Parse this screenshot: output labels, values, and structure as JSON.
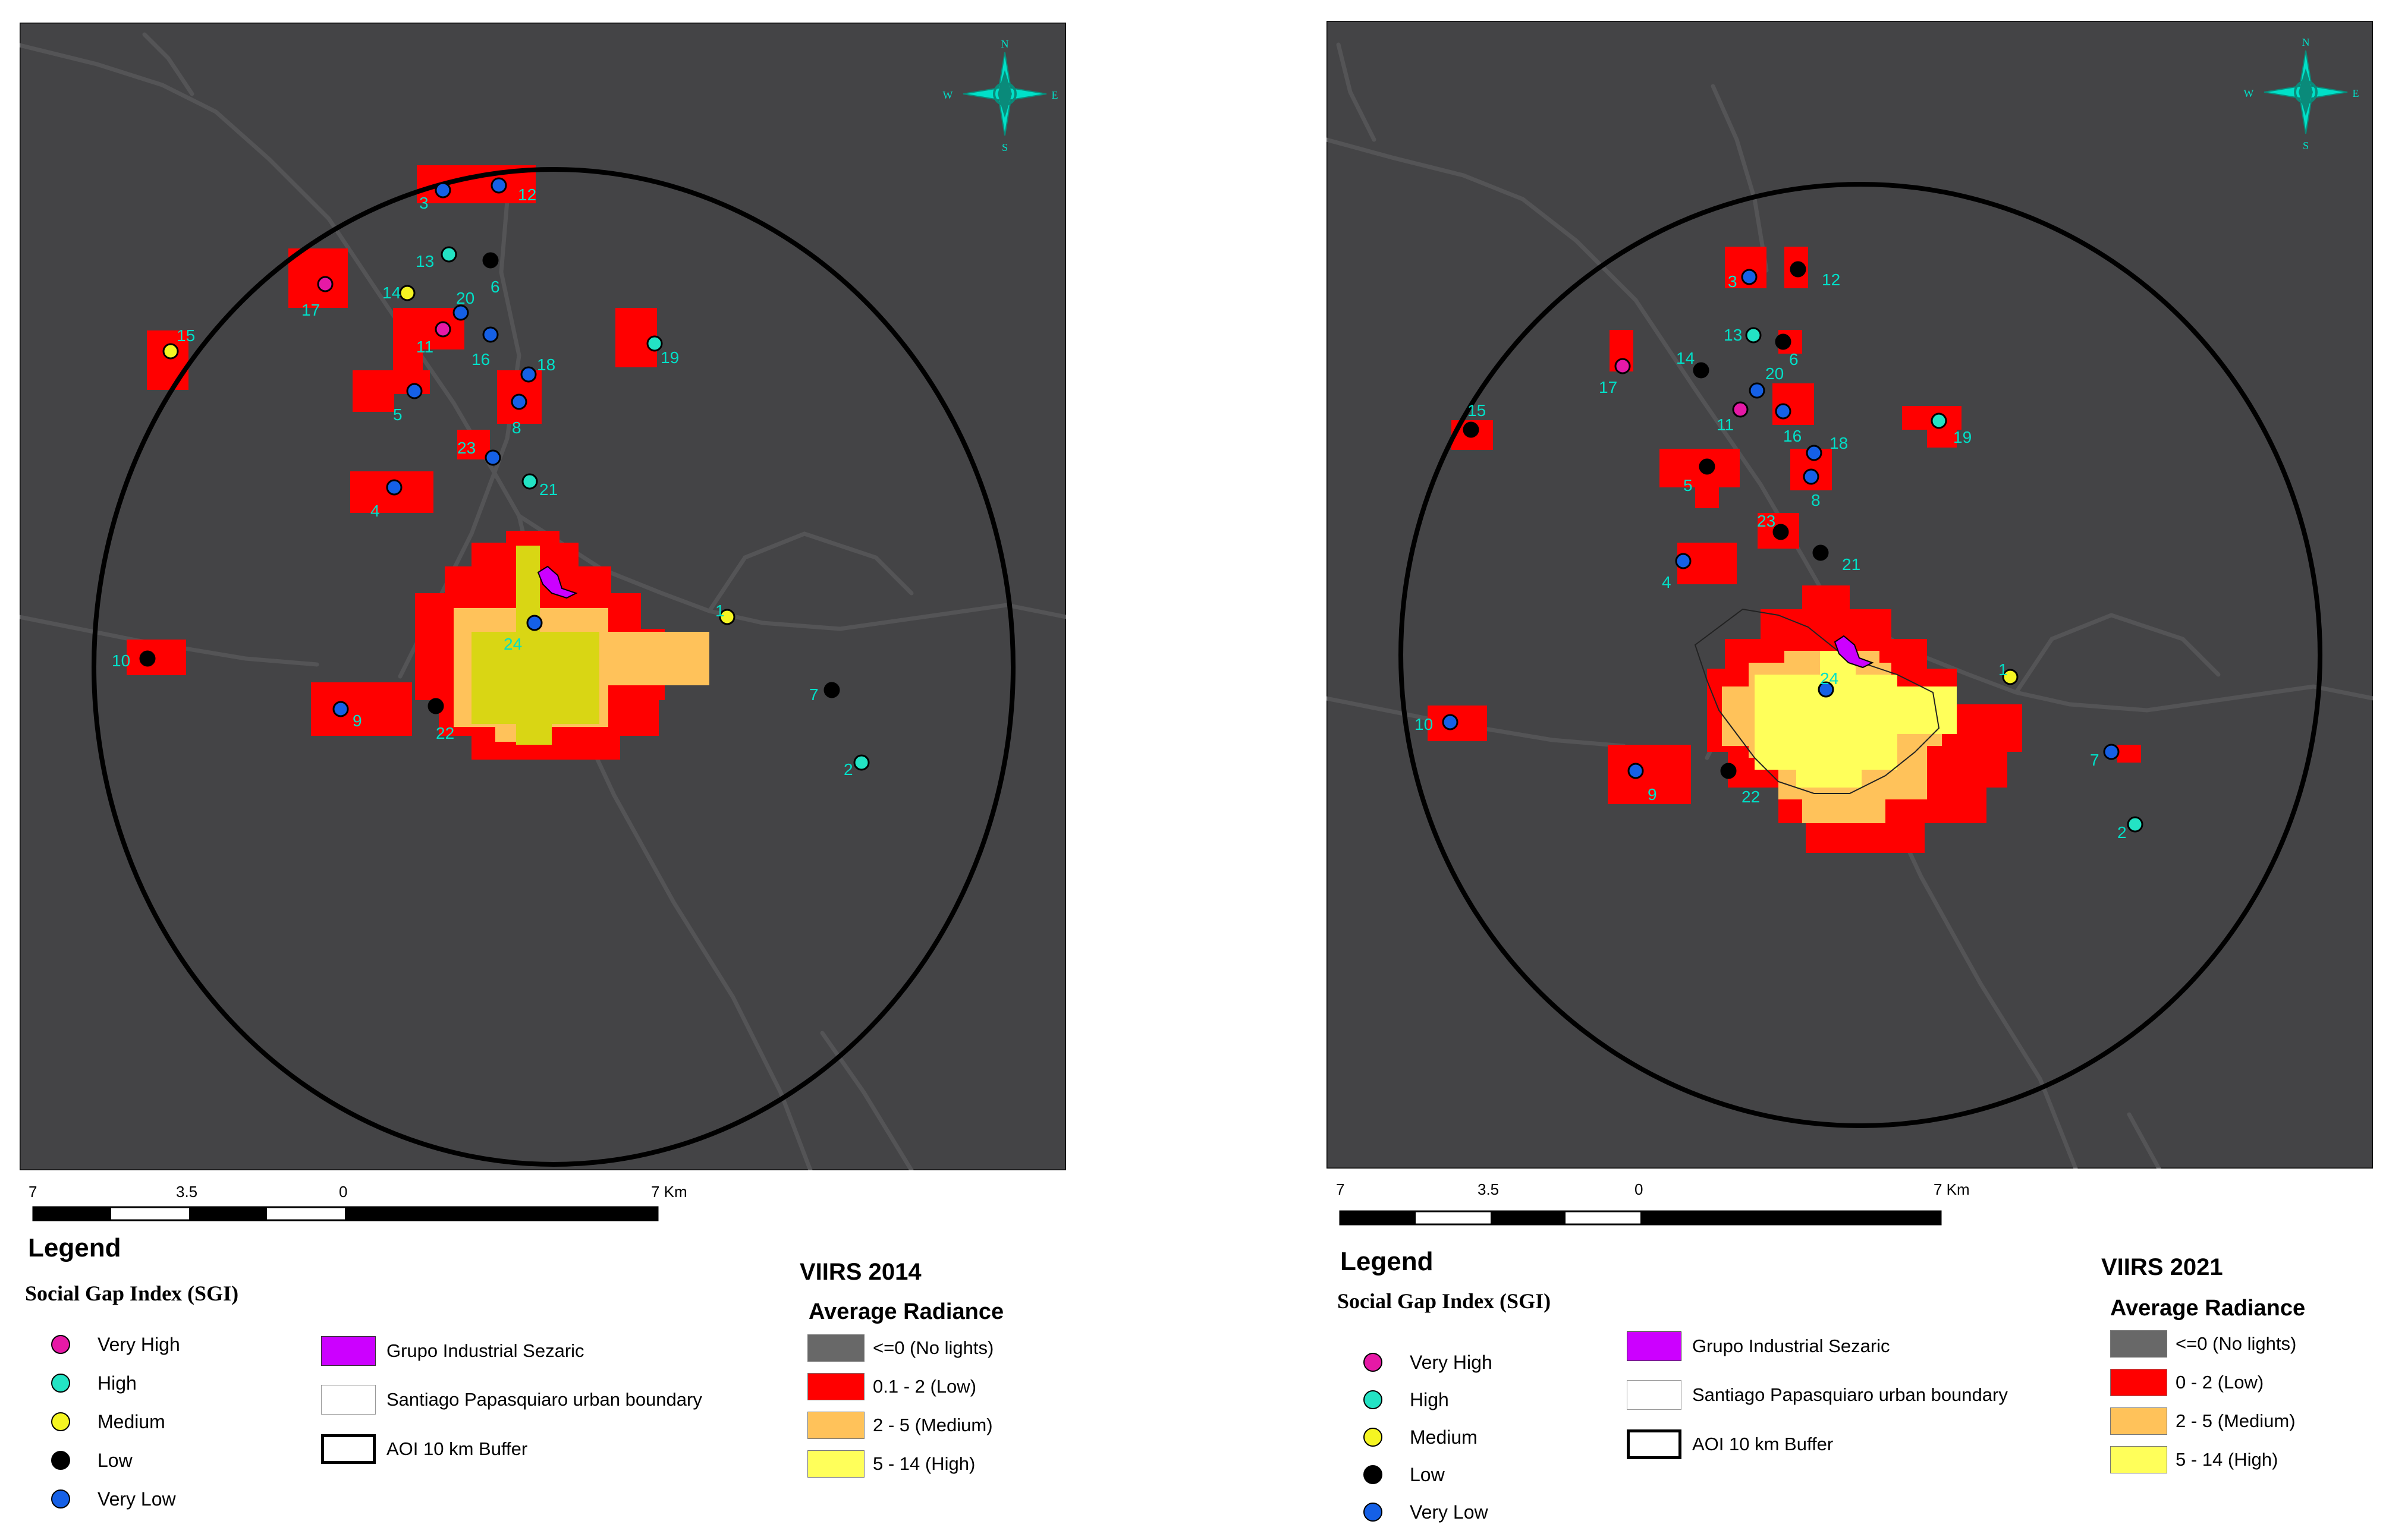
{
  "colors": {
    "map_background": "#444446",
    "road": "#525254",
    "buffer_outline": "#000000",
    "label": "#00e0c8",
    "compass": "#00e0c8"
  },
  "panels": [
    {
      "id": "left",
      "viirs_title": "VIIRS 2014",
      "radiance_title": "Average Radiance",
      "radiance_classes": [
        {
          "label": "<=0 (No lights)",
          "color": "#686868"
        },
        {
          "label": "0.1 - 2 (Low)",
          "color": "#ff0000"
        },
        {
          "label": "2 - 5 (Medium)",
          "color": "#ffc25a"
        },
        {
          "label": "5 - 14 (High)",
          "color": "#ffff5a"
        }
      ],
      "scale": {
        "ticks": [
          "7",
          "3.5",
          "0",
          "7 Km"
        ]
      },
      "points": [
        {
          "id": "1",
          "sgi": "Medium"
        },
        {
          "id": "2",
          "sgi": "High"
        },
        {
          "id": "3",
          "sgi": "Very Low"
        },
        {
          "id": "4",
          "sgi": "Very Low"
        },
        {
          "id": "5",
          "sgi": "Very Low"
        },
        {
          "id": "6",
          "sgi": "Low"
        },
        {
          "id": "7",
          "sgi": "Low"
        },
        {
          "id": "8",
          "sgi": "Very Low"
        },
        {
          "id": "9",
          "sgi": "Very Low"
        },
        {
          "id": "10",
          "sgi": "Low"
        },
        {
          "id": "11",
          "sgi": "Very High"
        },
        {
          "id": "12",
          "sgi": "Very Low"
        },
        {
          "id": "13",
          "sgi": "High"
        },
        {
          "id": "14",
          "sgi": "Medium"
        },
        {
          "id": "15",
          "sgi": "Medium"
        },
        {
          "id": "16",
          "sgi": "Very Low"
        },
        {
          "id": "17",
          "sgi": "Very High"
        },
        {
          "id": "18",
          "sgi": "Very Low"
        },
        {
          "id": "19",
          "sgi": "High"
        },
        {
          "id": "20",
          "sgi": "Very Low"
        },
        {
          "id": "21",
          "sgi": "High"
        },
        {
          "id": "22",
          "sgi": "Low"
        },
        {
          "id": "23",
          "sgi": "Very Low"
        },
        {
          "id": "24",
          "sgi": "Very Low"
        }
      ]
    },
    {
      "id": "right",
      "viirs_title": "VIIRS 2021",
      "radiance_title": "Average Radiance",
      "radiance_classes": [
        {
          "label": "<=0 (No lights)",
          "color": "#686868"
        },
        {
          "label": "0 - 2 (Low)",
          "color": "#ff0000"
        },
        {
          "label": "2 - 5 (Medium)",
          "color": "#ffc25a"
        },
        {
          "label": "5 - 14 (High)",
          "color": "#ffff5a"
        }
      ],
      "scale": {
        "ticks": [
          "7",
          "3.5",
          "0",
          "7 Km"
        ]
      },
      "points": [
        {
          "id": "1",
          "sgi": "Medium"
        },
        {
          "id": "2",
          "sgi": "High"
        },
        {
          "id": "3",
          "sgi": "Very Low"
        },
        {
          "id": "4",
          "sgi": "Very Low"
        },
        {
          "id": "5",
          "sgi": "Low"
        },
        {
          "id": "6",
          "sgi": "Low"
        },
        {
          "id": "7",
          "sgi": "Very Low"
        },
        {
          "id": "8",
          "sgi": "Very Low"
        },
        {
          "id": "9",
          "sgi": "Very Low"
        },
        {
          "id": "10",
          "sgi": "Very Low"
        },
        {
          "id": "11",
          "sgi": "Very High"
        },
        {
          "id": "12",
          "sgi": "Low"
        },
        {
          "id": "13",
          "sgi": "High"
        },
        {
          "id": "14",
          "sgi": "Low"
        },
        {
          "id": "15",
          "sgi": "Low"
        },
        {
          "id": "16",
          "sgi": "Very Low"
        },
        {
          "id": "17",
          "sgi": "Very High"
        },
        {
          "id": "18",
          "sgi": "Very Low"
        },
        {
          "id": "19",
          "sgi": "High"
        },
        {
          "id": "20",
          "sgi": "Very Low"
        },
        {
          "id": "21",
          "sgi": "Low"
        },
        {
          "id": "22",
          "sgi": "Low"
        },
        {
          "id": "23",
          "sgi": "Low"
        },
        {
          "id": "24",
          "sgi": "Very Low"
        }
      ]
    }
  ],
  "legend": {
    "title": "Legend",
    "sgi_title": "Social Gap Index (SGI)",
    "sgi_classes": [
      {
        "label": "Very High",
        "color": "#e619a6"
      },
      {
        "label": "High",
        "color": "#23e3c4"
      },
      {
        "label": "Medium",
        "color": "#f5f522"
      },
      {
        "label": "Low",
        "color": "#000000"
      },
      {
        "label": "Very Low",
        "color": "#1560e6"
      }
    ],
    "feature_items": [
      {
        "label": "Grupo Industrial Sezaric",
        "type": "fill",
        "color": "#cc00ff"
      },
      {
        "label": "Santiago Papasquiaro urban boundary",
        "type": "outline",
        "color": "#ffffff"
      },
      {
        "label": "AOI 10 km Buffer",
        "type": "buffer",
        "color": "#ffffff"
      }
    ]
  },
  "compass": {
    "n": "N",
    "s": "S",
    "e": "E",
    "w": "W"
  }
}
